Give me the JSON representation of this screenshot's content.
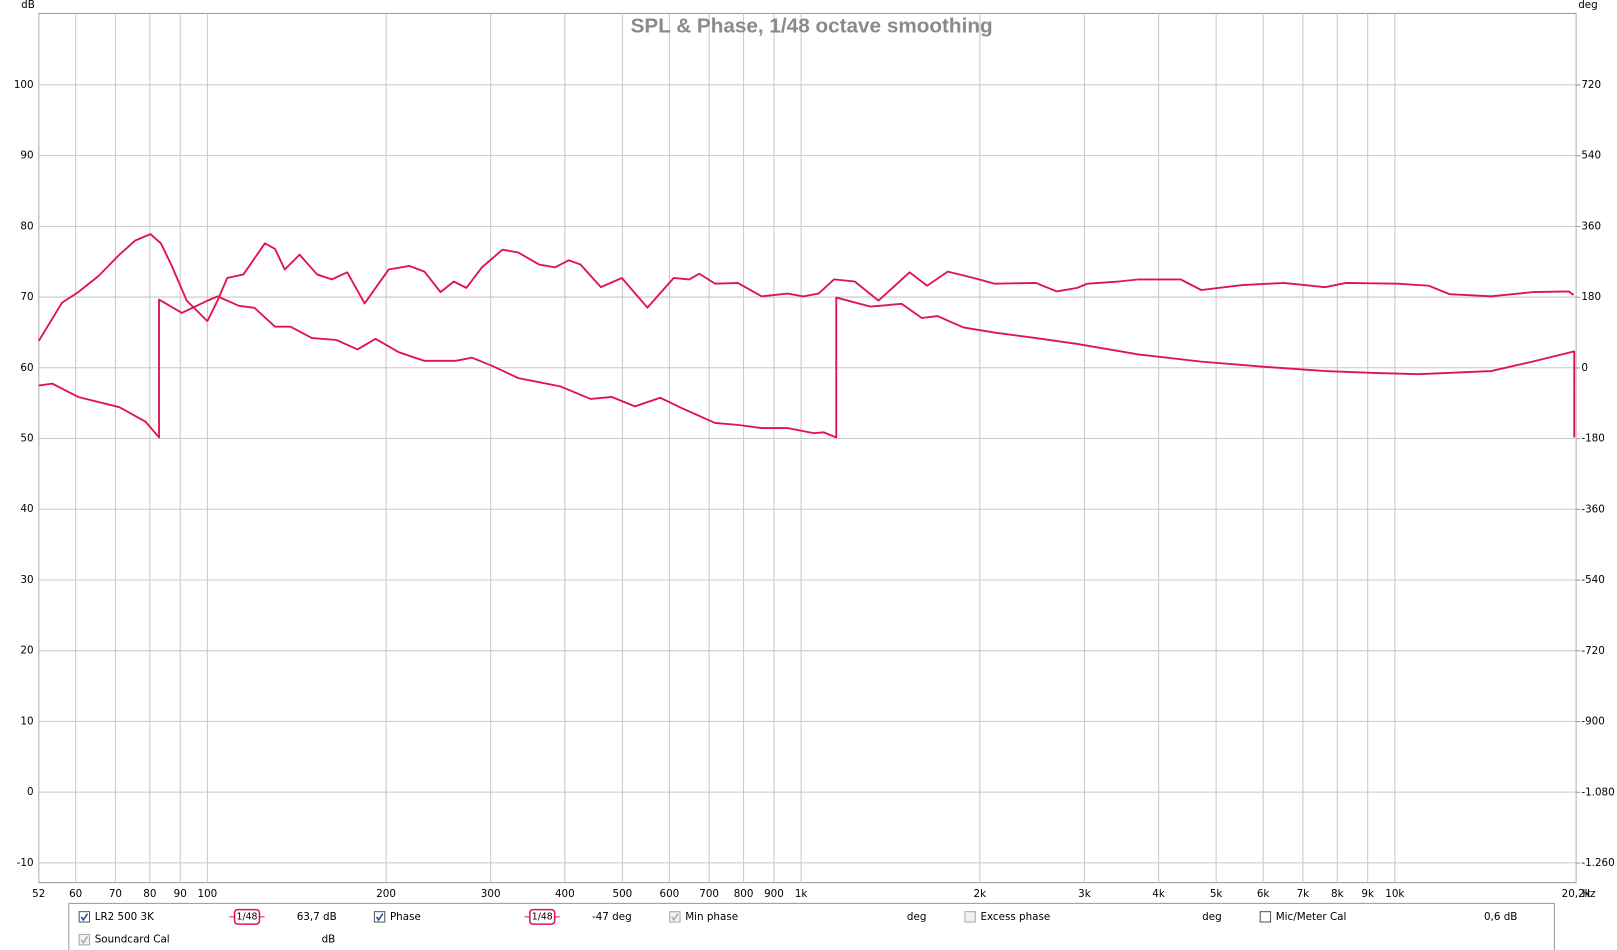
{
  "chart_data": {
    "type": "line",
    "title": "SPL & Phase, 1/48 octave smoothing",
    "y_label": "dB",
    "y2_label": "deg",
    "x_unit": "Hz",
    "xscale": "log",
    "grid": true,
    "xlim": [
      52,
      20200
    ],
    "ylim": [
      -12.8,
      110.1
    ],
    "y2lim": [
      -1310,
      902
    ],
    "xticks": [
      52,
      60,
      70,
      80,
      90,
      100,
      200,
      300,
      400,
      500,
      600,
      700,
      800,
      900,
      {
        "value": 1000,
        "label": "1k"
      },
      {
        "value": 2000,
        "label": "2k"
      },
      {
        "value": 3000,
        "label": "3k"
      },
      {
        "value": 4000,
        "label": "4k"
      },
      {
        "value": 5000,
        "label": "5k"
      },
      {
        "value": 6000,
        "label": "6k"
      },
      {
        "value": 7000,
        "label": "7k"
      },
      {
        "value": 8000,
        "label": "8k"
      },
      {
        "value": 9000,
        "label": "9k"
      },
      {
        "value": 10000,
        "label": "10k"
      },
      {
        "value": 20200,
        "label": "20,2k"
      }
    ],
    "yticks": [
      -10,
      0,
      10,
      20,
      30,
      40,
      50,
      60,
      70,
      80,
      90,
      100
    ],
    "y2ticks": [
      {
        "value": -1260,
        "label": "-1.260"
      },
      {
        "value": -1080,
        "label": "-1.080"
      },
      -900,
      -720,
      -540,
      -360,
      -180,
      0,
      180,
      360,
      540,
      720
    ],
    "series": [
      {
        "name": "LR2 500 3K",
        "color": "#e0144c",
        "checked": true,
        "smoothing": "1/48",
        "readout": "63,7 dB",
        "x": [
          52,
          56.9,
          60.6,
          65.6,
          71.1,
          75.6,
          80.2,
          83.5,
          86.9,
          92.3,
          100,
          104,
          108,
          115,
          125,
          130,
          135,
          143,
          153,
          162,
          172,
          184,
          202,
          219,
          232,
          247,
          260,
          273,
          290,
          314,
          334,
          362,
          385,
          406,
          425,
          460,
          499,
          551,
          610,
          648,
          674,
          716,
          782,
          858,
          949,
          1008,
          1070,
          1136,
          1231,
          1350,
          1523,
          1630,
          1766,
          1953,
          2116,
          2486,
          2693,
          2917,
          3036,
          3423,
          3709,
          4355,
          4719,
          5539,
          6500,
          7630,
          8270,
          10110,
          11410,
          12370,
          14520,
          17050,
          19620,
          20000
        ],
        "values": [
          63.8,
          69.2,
          70.7,
          73.0,
          76.0,
          78.0,
          78.9,
          77.6,
          74.6,
          69.5,
          66.6,
          69.5,
          72.7,
          73.2,
          77.6,
          76.8,
          73.9,
          76.0,
          73.2,
          72.5,
          73.5,
          69.1,
          73.9,
          74.4,
          73.6,
          70.7,
          72.2,
          71.3,
          74.2,
          76.7,
          76.3,
          74.6,
          74.2,
          75.2,
          74.6,
          71.4,
          72.7,
          68.5,
          72.7,
          72.5,
          73.3,
          71.9,
          72.0,
          70.1,
          70.5,
          70.1,
          70.5,
          72.5,
          72.2,
          69.5,
          73.5,
          71.6,
          73.6,
          72.7,
          71.9,
          72.0,
          70.8,
          71.3,
          71.9,
          72.2,
          72.5,
          72.5,
          71.0,
          71.7,
          72.0,
          71.4,
          72.0,
          71.9,
          71.6,
          70.4,
          70.1,
          70.7,
          70.8,
          70.3
        ]
      },
      {
        "name": "Phase",
        "axis": "y2",
        "color": "#e0144c",
        "checked": true,
        "smoothing": "1/48",
        "readout": "-47 deg",
        "x": [
          52,
          54.8,
          60.6,
          71.1,
          78.7,
          82.9,
          82.9,
          90.6,
          100,
          104,
          113,
          120,
          130,
          138,
          150,
          165,
          179,
          192,
          210,
          232,
          262,
          279,
          302,
          334,
          393,
          442,
          480,
          525,
          579,
          635,
          716,
          782,
          858,
          949,
          1049,
          1092,
          1146,
          1146,
          1309,
          1477,
          1597,
          1696,
          1876,
          2116,
          2486,
          2917,
          3709,
          4719,
          6000,
          7630,
          9330,
          10960,
          14520,
          17050,
          20050,
          20050
        ],
        "values": [
          -45,
          -40,
          -74,
          -100,
          -137,
          -177,
          174,
          140,
          171,
          182,
          158,
          153,
          105,
          105,
          76,
          71,
          47,
          74,
          40,
          18,
          18,
          26,
          5,
          -26,
          -47,
          -79,
          -74,
          -98,
          -76,
          -105,
          -140,
          -145,
          -153,
          -153,
          -166,
          -164,
          -177,
          179,
          156,
          163,
          127,
          132,
          103,
          90,
          76,
          61,
          34,
          16,
          3,
          -8,
          -13,
          -16,
          -8,
          16,
          42,
          -177
        ]
      }
    ],
    "other_traces": [
      {
        "name": "Min phase",
        "checked": true,
        "enabled": false,
        "unit": "deg"
      },
      {
        "name": "Excess phase",
        "checked": false,
        "enabled": false,
        "unit": "deg"
      },
      {
        "name": "Mic/Meter Cal",
        "checked": false,
        "enabled": true,
        "readout": "0,6 dB"
      },
      {
        "name": "Soundcard Cal",
        "checked": true,
        "enabled": false,
        "unit": "dB"
      }
    ]
  }
}
